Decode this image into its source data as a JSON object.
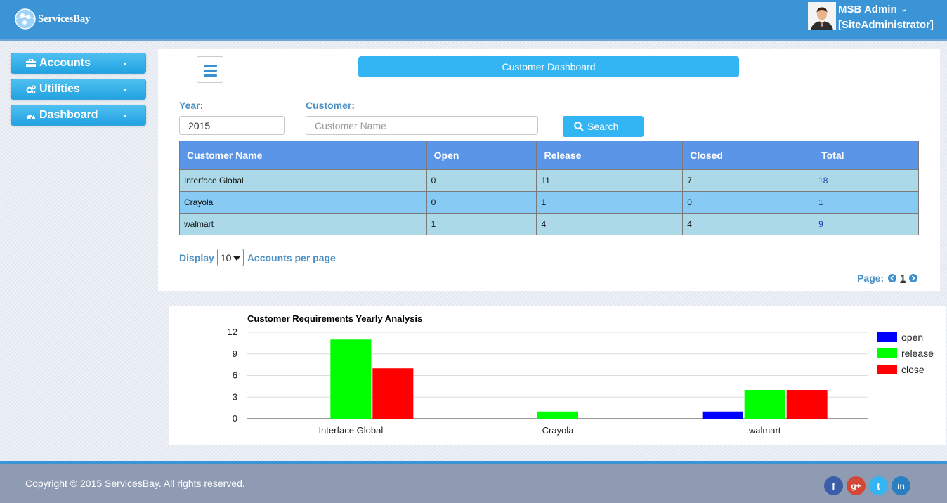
{
  "header": {
    "brand": "ServicesBay",
    "user_name": "MSB Admin",
    "user_role": "[SiteAdministrator]"
  },
  "sidebar": {
    "items": [
      {
        "label": "Accounts",
        "icon": "briefcase-icon"
      },
      {
        "label": "Utilities",
        "icon": "cogs-icon"
      },
      {
        "label": "Dashboard",
        "icon": "dashboard-icon"
      }
    ]
  },
  "main": {
    "title": "Customer Dashboard",
    "year_label": "Year:",
    "year_value": "2015",
    "customer_label": "Customer:",
    "customer_placeholder": "Customer Name",
    "search_label": "Search",
    "table": {
      "columns": [
        "Customer Name",
        "Open",
        "Release",
        "Closed",
        "Total"
      ],
      "rows": [
        [
          "Interface Global",
          "0",
          "11",
          "7",
          "18"
        ],
        [
          "Crayola",
          "0",
          "1",
          "0",
          "1"
        ],
        [
          "walmart",
          "1",
          "4",
          "4",
          "9"
        ]
      ]
    },
    "display_label": "Display",
    "per_page_value": "10",
    "per_page_suffix": "Accounts per page",
    "page_label": "Page:",
    "current_page": "1"
  },
  "chart_data": {
    "type": "bar",
    "title": "Customer Requirements Yearly Analysis",
    "categories": [
      "Interface Global",
      "Crayola",
      "walmart"
    ],
    "series": [
      {
        "name": "open",
        "color": "#0000ff",
        "values": [
          0,
          0,
          1
        ]
      },
      {
        "name": "release",
        "color": "#00ff00",
        "values": [
          11,
          1,
          4
        ]
      },
      {
        "name": "close",
        "color": "#ff0000",
        "values": [
          7,
          0,
          4
        ]
      }
    ],
    "ylim": [
      0,
      12
    ],
    "yticks": [
      0,
      3,
      6,
      9,
      12
    ],
    "legend": "right",
    "grid": true
  },
  "footer": {
    "copyright": "Copyright © 2015 ServicesBay. All rights reserved.",
    "social": [
      {
        "name": "facebook-icon",
        "glyph": "f",
        "color": "#3b5ea8"
      },
      {
        "name": "google-plus-icon",
        "glyph": "g+",
        "color": "#d34836"
      },
      {
        "name": "twitter-icon",
        "glyph": "t",
        "color": "#33b5f3"
      },
      {
        "name": "linkedin-icon",
        "glyph": "in",
        "color": "#2a7fc1"
      }
    ]
  }
}
